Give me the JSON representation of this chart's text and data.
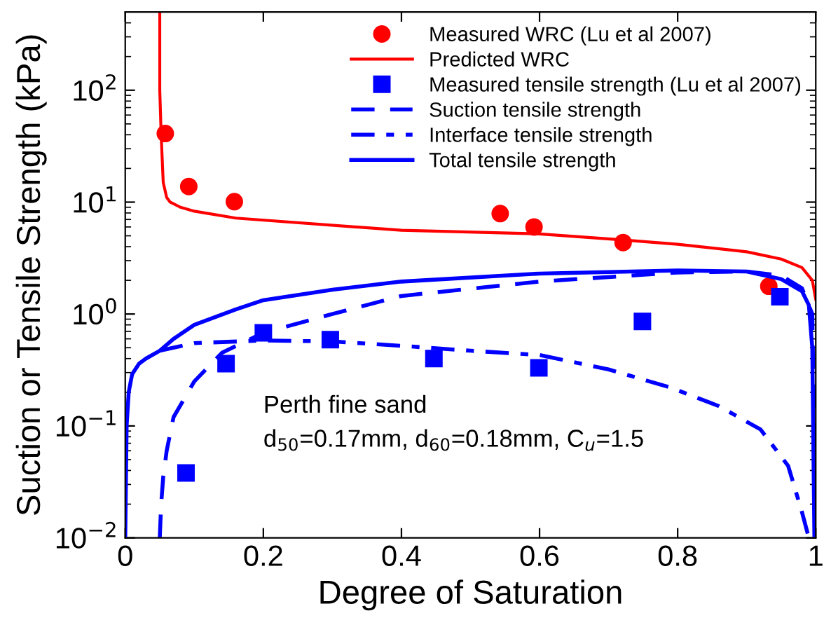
{
  "chart_data": {
    "type": "line",
    "xlabel": "Degree of Saturation",
    "ylabel": "Suction or Tensile Strength (kPa)",
    "xlim": [
      0,
      1
    ],
    "ylim": [
      0.01,
      500
    ],
    "log": "y",
    "xticks": [
      0,
      0.2,
      0.4,
      0.6,
      0.8,
      1
    ],
    "yticks": [
      {
        "value": 0.01,
        "label": "10$^{−2}$"
      },
      {
        "value": 0.1,
        "label": "10$^{−1}$"
      },
      {
        "value": 1,
        "label": "10$^{0}$"
      },
      {
        "value": 10,
        "label": "10$^{1}$"
      },
      {
        "value": 100,
        "label": "10$^{2}$"
      }
    ],
    "grid": false,
    "legend": "top right",
    "annotations": [
      "Perth fine sand",
      "d$_{50}$=0.17mm, d$_{60}$=0.18mm, C$_{u}$=1.5"
    ],
    "series": [
      {
        "name": "Measured WRC (Lu et al 2007)",
        "type": "scatter",
        "marker": "circle",
        "color": "#ff0000",
        "x": [
          0.058,
          0.092,
          0.158,
          0.543,
          0.592,
          0.721,
          0.932
        ],
        "values": [
          41,
          13.8,
          10.1,
          7.9,
          6.0,
          4.35,
          1.77
        ]
      },
      {
        "name": "Predicted WRC",
        "line_style": "solid",
        "color": "#ff0000",
        "x": [
          0.05,
          0.05,
          0.052,
          0.055,
          0.06,
          0.065,
          0.08,
          0.1,
          0.16,
          0.4,
          0.6,
          0.72,
          0.8,
          0.9,
          0.95,
          0.98,
          0.995,
          1.0
        ],
        "values": [
          500,
          100,
          40,
          15,
          11,
          10,
          9,
          8.3,
          7.2,
          5.6,
          5.2,
          4.6,
          4.2,
          3.6,
          3.1,
          2.6,
          2.0,
          1.35
        ]
      },
      {
        "name": "Measured tensile strength (Lu et al 2007)",
        "type": "scatter",
        "marker": "square",
        "color": "#0000ff",
        "x": [
          0.088,
          0.146,
          0.2,
          0.297,
          0.447,
          0.599,
          0.749,
          0.948
        ],
        "values": [
          0.038,
          0.36,
          0.68,
          0.59,
          0.4,
          0.33,
          0.86,
          1.43
        ]
      },
      {
        "name": "Suction tensile strength",
        "line_style": "dashed",
        "color": "#0000ff",
        "x": [
          0.05,
          0.052,
          0.055,
          0.06,
          0.07,
          0.1,
          0.14,
          0.2,
          0.3,
          0.4,
          0.6,
          0.8,
          0.9,
          0.95,
          0.98,
          0.995,
          1.0
        ],
        "values": [
          0.01,
          0.02,
          0.035,
          0.06,
          0.12,
          0.25,
          0.45,
          0.68,
          1.0,
          1.45,
          1.95,
          2.35,
          2.4,
          2.2,
          1.7,
          1.0,
          0.01
        ]
      },
      {
        "name": "Interface tensile strength",
        "line_style": "dashdot",
        "color": "#0000ff",
        "x": [
          0.05,
          0.1,
          0.2,
          0.3,
          0.4,
          0.5,
          0.6,
          0.7,
          0.79,
          0.86,
          0.92,
          0.96,
          0.98,
          0.99
        ],
        "values": [
          0.47,
          0.55,
          0.58,
          0.57,
          0.52,
          0.47,
          0.43,
          0.32,
          0.22,
          0.15,
          0.093,
          0.044,
          0.017,
          0.01
        ]
      },
      {
        "name": "Total tensile strength",
        "line_style": "solid",
        "color": "#0000ff",
        "x": [
          0.0,
          0.002,
          0.005,
          0.01,
          0.02,
          0.03,
          0.05,
          0.07,
          0.1,
          0.16,
          0.2,
          0.3,
          0.4,
          0.6,
          0.8,
          0.9,
          0.95,
          0.98,
          0.99,
          0.995,
          0.998
        ],
        "values": [
          0.01,
          0.1,
          0.2,
          0.29,
          0.36,
          0.4,
          0.47,
          0.6,
          0.8,
          1.1,
          1.33,
          1.65,
          1.95,
          2.3,
          2.45,
          2.4,
          2.05,
          1.6,
          1.2,
          0.5,
          0.01
        ]
      }
    ]
  }
}
